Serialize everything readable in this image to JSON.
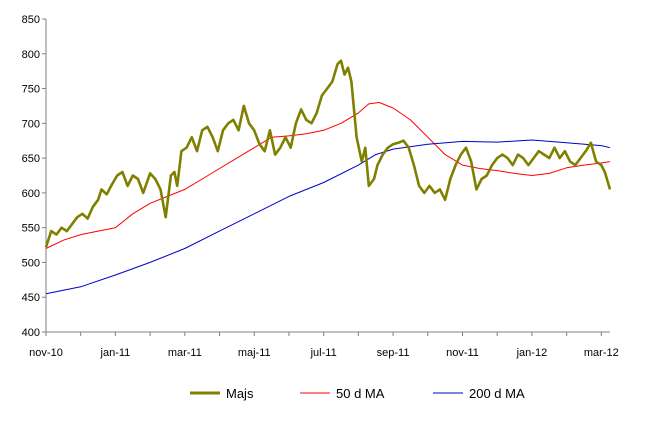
{
  "chart_data": {
    "type": "line",
    "title": "",
    "xlabel": "",
    "ylabel": "",
    "ylim": [
      400,
      850
    ],
    "y_ticks": [
      400,
      450,
      500,
      550,
      600,
      650,
      700,
      750,
      800,
      850
    ],
    "x_tick_labels": [
      "nov-10",
      "jan-11",
      "mar-11",
      "maj-11",
      "jul-11",
      "sep-11",
      "nov-11",
      "jan-12",
      "mar-12"
    ],
    "x_range": [
      0,
      16.25
    ],
    "grid": false,
    "legend_position": "bottom",
    "series": [
      {
        "name": "Majs",
        "color": "#808000",
        "style": "thick",
        "x": [
          0,
          0.15,
          0.3,
          0.45,
          0.6,
          0.75,
          0.9,
          1.05,
          1.2,
          1.35,
          1.5,
          1.6,
          1.75,
          1.9,
          2.05,
          2.2,
          2.35,
          2.5,
          2.65,
          2.8,
          3.0,
          3.15,
          3.3,
          3.45,
          3.6,
          3.7,
          3.78,
          3.9,
          4.05,
          4.2,
          4.35,
          4.5,
          4.65,
          4.8,
          4.95,
          5.1,
          5.25,
          5.4,
          5.55,
          5.7,
          5.85,
          6.0,
          6.15,
          6.3,
          6.45,
          6.6,
          6.75,
          6.9,
          7.05,
          7.2,
          7.35,
          7.5,
          7.65,
          7.8,
          7.95,
          8.1,
          8.25,
          8.4,
          8.5,
          8.6,
          8.7,
          8.8,
          8.95,
          9.1,
          9.2,
          9.3,
          9.45,
          9.55,
          9.7,
          9.85,
          10.0,
          10.15,
          10.3,
          10.45,
          10.6,
          10.75,
          10.9,
          11.05,
          11.2,
          11.35,
          11.5,
          11.65,
          11.8,
          11.95,
          12.1,
          12.25,
          12.4,
          12.55,
          12.7,
          12.85,
          13.0,
          13.15,
          13.3,
          13.45,
          13.6,
          13.75,
          13.9,
          14.05,
          14.2,
          14.35,
          14.5,
          14.65,
          14.8,
          14.95,
          15.1,
          15.25,
          15.4,
          15.55,
          15.7,
          15.85,
          16.0,
          16.1,
          16.25
        ],
        "values": [
          522,
          545,
          540,
          550,
          545,
          555,
          565,
          570,
          563,
          580,
          590,
          605,
          598,
          612,
          625,
          630,
          610,
          625,
          620,
          600,
          628,
          620,
          605,
          565,
          625,
          630,
          610,
          660,
          665,
          680,
          660,
          690,
          695,
          680,
          660,
          690,
          700,
          705,
          690,
          725,
          700,
          690,
          670,
          660,
          690,
          655,
          665,
          680,
          665,
          700,
          720,
          705,
          700,
          715,
          740,
          750,
          760,
          785,
          790,
          770,
          780,
          760,
          680,
          645,
          665,
          610,
          620,
          640,
          655,
          665,
          670,
          672,
          675,
          665,
          640,
          610,
          600,
          610,
          600,
          605,
          590,
          620,
          640,
          655,
          665,
          645,
          605,
          620,
          625,
          640,
          650,
          655,
          650,
          640,
          655,
          650,
          640,
          650,
          660,
          655,
          650,
          665,
          650,
          660,
          645,
          640,
          650,
          660,
          672,
          645,
          640,
          630,
          605
        ]
      },
      {
        "name": "50 d MA",
        "color": "#ff0000",
        "style": "thin",
        "x": [
          0,
          0.5,
          1.0,
          1.5,
          2.0,
          2.5,
          3.0,
          3.5,
          4.0,
          4.5,
          5.0,
          5.5,
          6.0,
          6.5,
          7.0,
          7.5,
          8.0,
          8.5,
          9.0,
          9.3,
          9.6,
          10.0,
          10.5,
          11.0,
          11.5,
          12.0,
          12.5,
          13.0,
          13.5,
          14.0,
          14.5,
          15.0,
          15.5,
          16.0,
          16.25
        ],
        "values": [
          520,
          532,
          540,
          545,
          550,
          570,
          585,
          595,
          605,
          620,
          635,
          650,
          665,
          680,
          682,
          685,
          690,
          700,
          715,
          728,
          730,
          722,
          705,
          680,
          655,
          640,
          635,
          632,
          628,
          625,
          628,
          636,
          640,
          643,
          645
        ]
      },
      {
        "name": "200 d MA",
        "color": "#0000cc",
        "style": "thin",
        "x": [
          0,
          1.0,
          2.0,
          3.0,
          4.0,
          5.0,
          6.0,
          7.0,
          8.0,
          9.0,
          9.5,
          10.0,
          11.0,
          12.0,
          13.0,
          14.0,
          15.0,
          16.0,
          16.25
        ],
        "values": [
          455,
          465,
          482,
          500,
          520,
          545,
          570,
          595,
          615,
          640,
          655,
          663,
          670,
          674,
          673,
          676,
          672,
          668,
          665
        ]
      }
    ]
  }
}
